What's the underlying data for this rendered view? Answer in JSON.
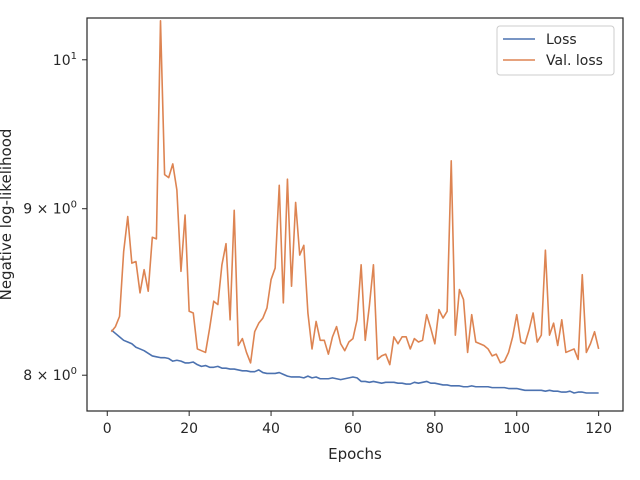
{
  "chart_data": {
    "type": "line",
    "xlabel": "Epochs",
    "ylabel": "Negative log-likelihood",
    "y_scale": "log",
    "xlim": [
      -4.95,
      125.95
    ],
    "ylim": [
      7.8,
      10.3
    ],
    "x_ticks": [
      0,
      20,
      40,
      60,
      80,
      100,
      120
    ],
    "x_tick_labels": [
      "0",
      "20",
      "40",
      "60",
      "80",
      "100",
      "120"
    ],
    "y_ticks": [
      8,
      9,
      10
    ],
    "y_tick_labels": [
      {
        "base": "8 × 10",
        "exp": "0"
      },
      {
        "base": "9 × 10",
        "exp": "0"
      },
      {
        "base": "10",
        "exp": "1"
      }
    ],
    "legend_position": "top-right",
    "grid": false,
    "series": [
      {
        "name": "Loss",
        "color": "#4c72b0",
        "x": [
          1,
          2,
          3,
          4,
          5,
          6,
          7,
          8,
          9,
          10,
          11,
          12,
          13,
          14,
          15,
          16,
          17,
          18,
          19,
          20,
          21,
          22,
          23,
          24,
          25,
          26,
          27,
          28,
          29,
          30,
          31,
          32,
          33,
          34,
          35,
          36,
          37,
          38,
          39,
          40,
          41,
          42,
          43,
          44,
          45,
          46,
          47,
          48,
          49,
          50,
          51,
          52,
          53,
          54,
          55,
          56,
          57,
          58,
          59,
          60,
          61,
          62,
          63,
          64,
          65,
          66,
          67,
          68,
          69,
          70,
          71,
          72,
          73,
          74,
          75,
          76,
          77,
          78,
          79,
          80,
          81,
          82,
          83,
          84,
          85,
          86,
          87,
          88,
          89,
          90,
          91,
          92,
          93,
          94,
          95,
          96,
          97,
          98,
          99,
          100,
          101,
          102,
          103,
          104,
          105,
          106,
          107,
          108,
          109,
          110,
          111,
          112,
          113,
          114,
          115,
          116,
          117,
          118,
          119,
          120
        ],
        "y": [
          8.26,
          8.24,
          8.22,
          8.2,
          8.19,
          8.18,
          8.16,
          8.15,
          8.14,
          8.125,
          8.11,
          8.105,
          8.1,
          8.1,
          8.095,
          8.08,
          8.085,
          8.08,
          8.07,
          8.07,
          8.075,
          8.06,
          8.05,
          8.055,
          8.045,
          8.045,
          8.05,
          8.04,
          8.04,
          8.035,
          8.035,
          8.03,
          8.025,
          8.025,
          8.02,
          8.02,
          8.03,
          8.015,
          8.01,
          8.01,
          8.01,
          8.015,
          8.005,
          7.995,
          7.99,
          7.99,
          7.99,
          7.985,
          7.995,
          7.985,
          7.99,
          7.98,
          7.98,
          7.98,
          7.985,
          7.98,
          7.975,
          7.98,
          7.985,
          7.99,
          7.985,
          7.965,
          7.965,
          7.96,
          7.965,
          7.96,
          7.955,
          7.96,
          7.96,
          7.96,
          7.955,
          7.955,
          7.95,
          7.95,
          7.96,
          7.955,
          7.96,
          7.965,
          7.955,
          7.955,
          7.95,
          7.945,
          7.945,
          7.94,
          7.94,
          7.94,
          7.935,
          7.935,
          7.94,
          7.935,
          7.935,
          7.935,
          7.935,
          7.93,
          7.93,
          7.93,
          7.93,
          7.925,
          7.925,
          7.925,
          7.92,
          7.915,
          7.915,
          7.915,
          7.915,
          7.915,
          7.91,
          7.915,
          7.91,
          7.91,
          7.905,
          7.905,
          7.91,
          7.9,
          7.905,
          7.905,
          7.9,
          7.9,
          7.9,
          7.9
        ]
      },
      {
        "name": "Val. loss",
        "color": "#dd8452",
        "x": [
          1,
          2,
          3,
          4,
          5,
          6,
          7,
          8,
          9,
          10,
          11,
          12,
          13,
          14,
          15,
          16,
          17,
          18,
          19,
          20,
          21,
          22,
          23,
          24,
          25,
          26,
          27,
          28,
          29,
          30,
          31,
          32,
          33,
          34,
          35,
          36,
          37,
          38,
          39,
          40,
          41,
          42,
          43,
          44,
          45,
          46,
          47,
          48,
          49,
          50,
          51,
          52,
          53,
          54,
          55,
          56,
          57,
          58,
          59,
          60,
          61,
          62,
          63,
          64,
          65,
          66,
          67,
          68,
          69,
          70,
          71,
          72,
          73,
          74,
          75,
          76,
          77,
          78,
          79,
          80,
          81,
          82,
          83,
          84,
          85,
          86,
          87,
          88,
          89,
          90,
          91,
          92,
          93,
          94,
          95,
          96,
          97,
          98,
          99,
          100,
          101,
          102,
          103,
          104,
          105,
          106,
          107,
          108,
          109,
          110,
          111,
          112,
          113,
          114,
          115,
          116,
          117,
          118,
          119,
          120
        ],
        "y": [
          8.25,
          8.28,
          8.34,
          8.73,
          8.95,
          8.66,
          8.67,
          8.48,
          8.62,
          8.49,
          8.82,
          8.81,
          10.28,
          9.22,
          9.2,
          9.29,
          9.12,
          8.61,
          8.96,
          8.37,
          8.36,
          8.15,
          8.14,
          8.13,
          8.27,
          8.43,
          8.41,
          8.65,
          8.78,
          8.32,
          8.99,
          8.17,
          8.21,
          8.13,
          8.07,
          8.25,
          8.3,
          8.33,
          8.39,
          8.56,
          8.63,
          9.15,
          8.42,
          9.19,
          8.52,
          9.04,
          8.71,
          8.77,
          8.36,
          8.15,
          8.31,
          8.2,
          8.2,
          8.12,
          8.22,
          8.28,
          8.18,
          8.14,
          8.19,
          8.21,
          8.32,
          8.65,
          8.2,
          8.4,
          8.65,
          8.09,
          8.11,
          8.12,
          8.06,
          8.22,
          8.18,
          8.22,
          8.22,
          8.15,
          8.21,
          8.19,
          8.2,
          8.35,
          8.27,
          8.18,
          8.38,
          8.33,
          8.37,
          9.31,
          8.23,
          8.5,
          8.44,
          8.13,
          8.35,
          8.19,
          8.18,
          8.17,
          8.15,
          8.11,
          8.12,
          8.07,
          8.08,
          8.13,
          8.22,
          8.35,
          8.19,
          8.18,
          8.26,
          8.36,
          8.19,
          8.23,
          8.74,
          8.23,
          8.3,
          8.17,
          8.32,
          8.13,
          8.14,
          8.15,
          8.09,
          8.59,
          8.13,
          8.18,
          8.25,
          8.15
        ]
      }
    ]
  }
}
